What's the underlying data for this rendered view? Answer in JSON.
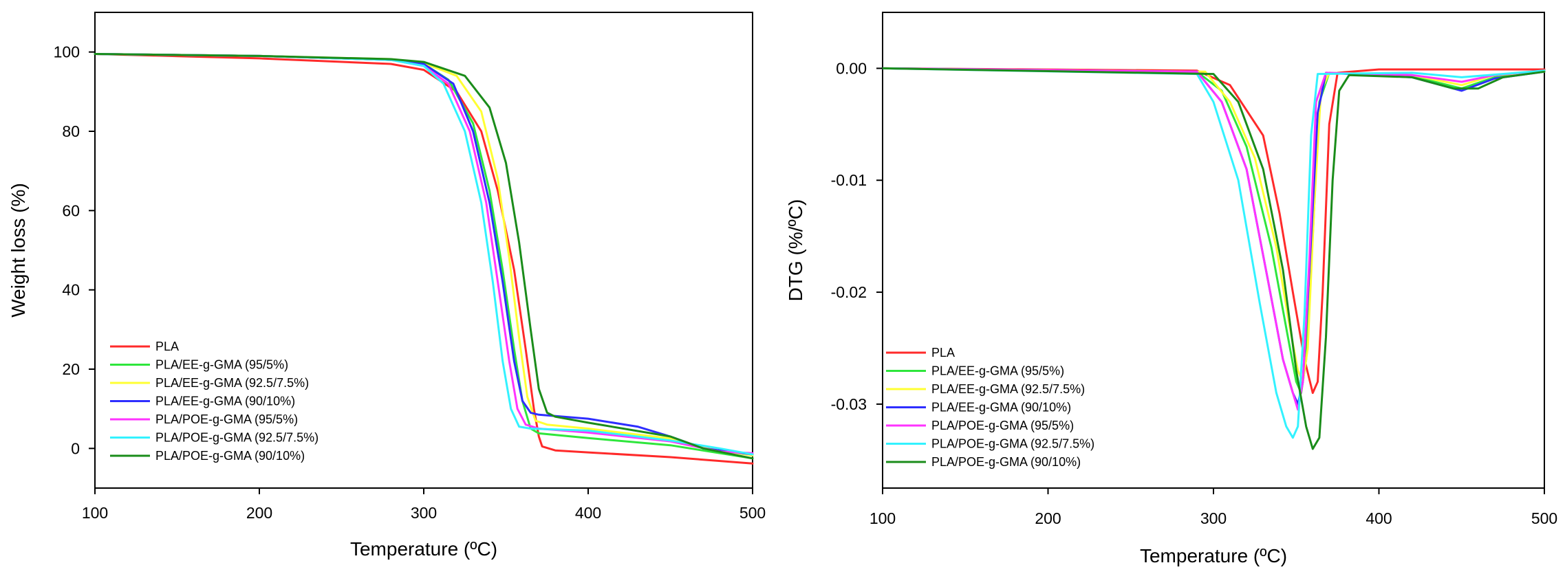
{
  "chart_data": [
    {
      "id": "tga",
      "type": "line",
      "xlabel": "Temperature (ºC)",
      "ylabel": "Weight loss (%)",
      "xlim": [
        100,
        500
      ],
      "ylim": [
        -10,
        110
      ],
      "xticks": [
        100,
        200,
        300,
        400,
        500
      ],
      "yticks": [
        0,
        20,
        40,
        60,
        80,
        100
      ],
      "legend_position": "bottom-left",
      "grid": false,
      "series": [
        {
          "name": "PLA",
          "color": "#ff2a2a",
          "points": [
            [
              100,
              99.5
            ],
            [
              200,
              98.4
            ],
            [
              280,
              97
            ],
            [
              300,
              95.5
            ],
            [
              320,
              90
            ],
            [
              335,
              80
            ],
            [
              345,
              65
            ],
            [
              355,
              45
            ],
            [
              362,
              25
            ],
            [
              367,
              10
            ],
            [
              370,
              3
            ],
            [
              372,
              0.5
            ],
            [
              380,
              -0.5
            ],
            [
              400,
              -1
            ],
            [
              450,
              -2.2
            ],
            [
              500,
              -3.8
            ]
          ]
        },
        {
          "name": "PLA/EE-g-GMA (95/5%)",
          "color": "#2ee63c",
          "points": [
            [
              100,
              99.5
            ],
            [
              200,
              99
            ],
            [
              280,
              98
            ],
            [
              300,
              97
            ],
            [
              315,
              93
            ],
            [
              330,
              82
            ],
            [
              340,
              65
            ],
            [
              348,
              45
            ],
            [
              355,
              25
            ],
            [
              360,
              12
            ],
            [
              365,
              5
            ],
            [
              370,
              3.8
            ],
            [
              400,
              2.6
            ],
            [
              450,
              0.8
            ],
            [
              500,
              -2.5
            ]
          ]
        },
        {
          "name": "PLA/EE-g-GMA (92.5/7.5%)",
          "color": "#ffff33",
          "points": [
            [
              100,
              99.5
            ],
            [
              200,
              99
            ],
            [
              280,
              98.2
            ],
            [
              300,
              97.2
            ],
            [
              320,
              94
            ],
            [
              335,
              85
            ],
            [
              345,
              68
            ],
            [
              352,
              48
            ],
            [
              358,
              28
            ],
            [
              363,
              13
            ],
            [
              368,
              7
            ],
            [
              375,
              6
            ],
            [
              400,
              5
            ],
            [
              450,
              2.5
            ],
            [
              470,
              0.2
            ],
            [
              500,
              -1.8
            ]
          ]
        },
        {
          "name": "PLA/EE-g-GMA (90/10%)",
          "color": "#2e2eff",
          "points": [
            [
              100,
              99.5
            ],
            [
              200,
              99
            ],
            [
              280,
              98
            ],
            [
              300,
              97
            ],
            [
              318,
              92
            ],
            [
              330,
              80
            ],
            [
              340,
              62
            ],
            [
              348,
              42
            ],
            [
              355,
              22
            ],
            [
              360,
              12
            ],
            [
              365,
              9
            ],
            [
              370,
              8.5
            ],
            [
              400,
              7.5
            ],
            [
              430,
              5.5
            ],
            [
              450,
              3
            ],
            [
              470,
              0
            ],
            [
              500,
              -1.5
            ]
          ]
        },
        {
          "name": "PLA/POE-g-GMA (95/5%)",
          "color": "#ff33ff",
          "points": [
            [
              100,
              99.5
            ],
            [
              200,
              99
            ],
            [
              280,
              98
            ],
            [
              300,
              96.5
            ],
            [
              315,
              92
            ],
            [
              328,
              80
            ],
            [
              338,
              62
            ],
            [
              345,
              42
            ],
            [
              352,
              22
            ],
            [
              357,
              10
            ],
            [
              362,
              6
            ],
            [
              370,
              5
            ],
            [
              400,
              4
            ],
            [
              450,
              1.8
            ],
            [
              480,
              -0.8
            ],
            [
              500,
              -1.2
            ]
          ]
        },
        {
          "name": "PLA/POE-g-GMA (92.5/7.5%)",
          "color": "#33f2ff",
          "points": [
            [
              100,
              99.5
            ],
            [
              200,
              99
            ],
            [
              280,
              98
            ],
            [
              300,
              96.5
            ],
            [
              312,
              92
            ],
            [
              325,
              80
            ],
            [
              335,
              62
            ],
            [
              342,
              42
            ],
            [
              348,
              22
            ],
            [
              353,
              10
            ],
            [
              358,
              5.5
            ],
            [
              365,
              5
            ],
            [
              400,
              4.5
            ],
            [
              450,
              2
            ],
            [
              480,
              0
            ],
            [
              500,
              -1.5
            ]
          ]
        },
        {
          "name": "PLA/POE-g-GMA (90/10%)",
          "color": "#1a8c1a",
          "points": [
            [
              100,
              99.5
            ],
            [
              200,
              99
            ],
            [
              280,
              98.2
            ],
            [
              300,
              97.5
            ],
            [
              325,
              94
            ],
            [
              340,
              86
            ],
            [
              350,
              72
            ],
            [
              358,
              52
            ],
            [
              365,
              30
            ],
            [
              370,
              15
            ],
            [
              375,
              9
            ],
            [
              380,
              8
            ],
            [
              400,
              6.5
            ],
            [
              450,
              3
            ],
            [
              470,
              0
            ],
            [
              500,
              -2.5
            ]
          ]
        }
      ]
    },
    {
      "id": "dtg",
      "type": "line",
      "xlabel": "Temperature (ºC)",
      "ylabel": "DTG (%/ºC)",
      "xlim": [
        100,
        500
      ],
      "ylim": [
        -0.0375,
        0.005
      ],
      "xticks": [
        100,
        200,
        300,
        400,
        500
      ],
      "yticks": [
        0,
        -0.01,
        -0.02,
        -0.03
      ],
      "ytick_labels": [
        "0.00",
        "-0.01",
        "-0.02",
        "-0.03"
      ],
      "legend_position": "bottom-left",
      "grid": false,
      "series": [
        {
          "name": "PLA",
          "color": "#ff2a2a",
          "points": [
            [
              100,
              0
            ],
            [
              290,
              -0.0002
            ],
            [
              310,
              -0.0015
            ],
            [
              330,
              -0.006
            ],
            [
              340,
              -0.013
            ],
            [
              348,
              -0.02
            ],
            [
              355,
              -0.026
            ],
            [
              360,
              -0.029
            ],
            [
              363,
              -0.028
            ],
            [
              366,
              -0.02
            ],
            [
              370,
              -0.005
            ],
            [
              375,
              -0.0004
            ],
            [
              400,
              -0.0001
            ],
            [
              500,
              -0.0001
            ]
          ]
        },
        {
          "name": "PLA/EE-g-GMA (95/5%)",
          "color": "#2ee63c",
          "points": [
            [
              100,
              0
            ],
            [
              290,
              -0.0003
            ],
            [
              305,
              -0.002
            ],
            [
              320,
              -0.007
            ],
            [
              335,
              -0.016
            ],
            [
              345,
              -0.024
            ],
            [
              350,
              -0.028
            ],
            [
              353,
              -0.029
            ],
            [
              356,
              -0.026
            ],
            [
              360,
              -0.015
            ],
            [
              364,
              -0.003
            ],
            [
              370,
              -0.0004
            ],
            [
              420,
              -0.0007
            ],
            [
              450,
              -0.0018
            ],
            [
              470,
              -0.0008
            ],
            [
              500,
              -0.0003
            ]
          ]
        },
        {
          "name": "PLA/EE-g-GMA (92.5/7.5%)",
          "color": "#ffff33",
          "points": [
            [
              100,
              0
            ],
            [
              295,
              -0.0003
            ],
            [
              310,
              -0.003
            ],
            [
              325,
              -0.008
            ],
            [
              338,
              -0.016
            ],
            [
              346,
              -0.023
            ],
            [
              351,
              -0.027
            ],
            [
              354,
              -0.028
            ],
            [
              357,
              -0.025
            ],
            [
              361,
              -0.012
            ],
            [
              365,
              -0.002
            ],
            [
              370,
              -0.0004
            ],
            [
              420,
              -0.0006
            ],
            [
              450,
              -0.0015
            ],
            [
              470,
              -0.0006
            ],
            [
              500,
              -0.0003
            ]
          ]
        },
        {
          "name": "PLA/EE-g-GMA (90/10%)",
          "color": "#2e2eff",
          "points": [
            [
              100,
              0
            ],
            [
              290,
              -0.0003
            ],
            [
              305,
              -0.003
            ],
            [
              320,
              -0.009
            ],
            [
              333,
              -0.019
            ],
            [
              342,
              -0.026
            ],
            [
              348,
              -0.029
            ],
            [
              351,
              -0.03
            ],
            [
              354,
              -0.028
            ],
            [
              358,
              -0.018
            ],
            [
              363,
              -0.004
            ],
            [
              368,
              -0.0004
            ],
            [
              420,
              -0.0008
            ],
            [
              450,
              -0.002
            ],
            [
              470,
              -0.0009
            ],
            [
              500,
              -0.0003
            ]
          ]
        },
        {
          "name": "PLA/POE-g-GMA (95/5%)",
          "color": "#ff33ff",
          "points": [
            [
              100,
              0
            ],
            [
              290,
              -0.0003
            ],
            [
              305,
              -0.003
            ],
            [
              320,
              -0.009
            ],
            [
              333,
              -0.019
            ],
            [
              342,
              -0.026
            ],
            [
              348,
              -0.029
            ],
            [
              351,
              -0.0305
            ],
            [
              354,
              -0.028
            ],
            [
              358,
              -0.017
            ],
            [
              362,
              -0.003
            ],
            [
              368,
              -0.0004
            ],
            [
              420,
              -0.0006
            ],
            [
              450,
              -0.0012
            ],
            [
              470,
              -0.0006
            ],
            [
              500,
              -0.0002
            ]
          ]
        },
        {
          "name": "PLA/POE-g-GMA (92.5/7.5%)",
          "color": "#33f2ff",
          "points": [
            [
              100,
              0
            ],
            [
              290,
              -0.0005
            ],
            [
              300,
              -0.003
            ],
            [
              315,
              -0.01
            ],
            [
              328,
              -0.021
            ],
            [
              338,
              -0.029
            ],
            [
              344,
              -0.032
            ],
            [
              348,
              -0.033
            ],
            [
              351,
              -0.032
            ],
            [
              355,
              -0.022
            ],
            [
              359,
              -0.006
            ],
            [
              363,
              -0.0005
            ],
            [
              420,
              -0.0004
            ],
            [
              450,
              -0.0008
            ],
            [
              500,
              -0.0002
            ]
          ]
        },
        {
          "name": "PLA/POE-g-GMA (90/10%)",
          "color": "#1a8c1a",
          "points": [
            [
              100,
              0
            ],
            [
              300,
              -0.0005
            ],
            [
              315,
              -0.003
            ],
            [
              330,
              -0.009
            ],
            [
              342,
              -0.018
            ],
            [
              350,
              -0.027
            ],
            [
              356,
              -0.032
            ],
            [
              360,
              -0.034
            ],
            [
              364,
              -0.033
            ],
            [
              368,
              -0.024
            ],
            [
              372,
              -0.01
            ],
            [
              376,
              -0.002
            ],
            [
              382,
              -0.0006
            ],
            [
              420,
              -0.0008
            ],
            [
              445,
              -0.0018
            ],
            [
              460,
              -0.0018
            ],
            [
              475,
              -0.0008
            ],
            [
              500,
              -0.0003
            ]
          ]
        }
      ]
    }
  ]
}
